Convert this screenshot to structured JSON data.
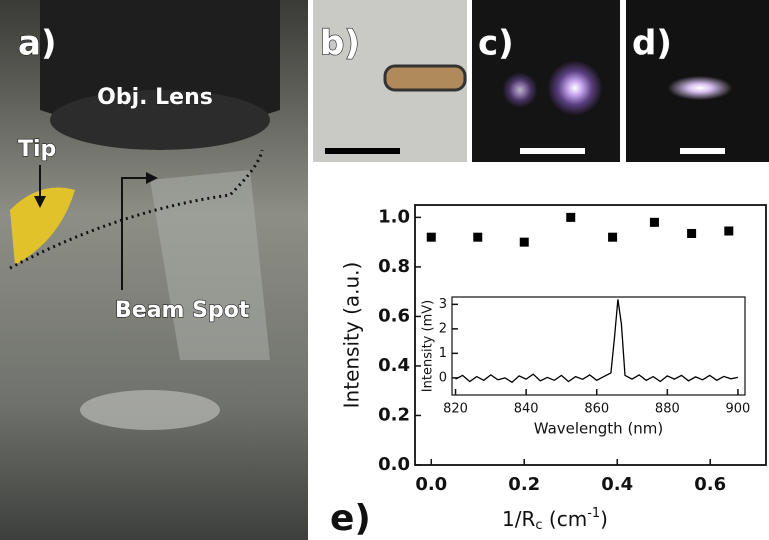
{
  "panel_labels": [
    "a)",
    "b)",
    "c)",
    "d)",
    "e)"
  ],
  "photo_annotations": [
    "Obj. Lens",
    "Tip",
    "Beam Spot"
  ],
  "chart_data": [
    {
      "type": "scatter",
      "ylabel": "Intensity (a.u.)",
      "xlabel": {
        "text": "1/R",
        "sub": "c",
        "unit_open": " (cm",
        "sup": "-1",
        "unit_close": ")"
      },
      "x": [
        0.0,
        0.1,
        0.2,
        0.3,
        0.39,
        0.48,
        0.56,
        0.64
      ],
      "values": [
        0.92,
        0.92,
        0.9,
        1.0,
        0.92,
        0.98,
        0.935,
        0.945
      ],
      "color": "#000000",
      "xlim": [
        -0.035,
        0.72
      ],
      "ylim": [
        0,
        1.05
      ],
      "xticks": [
        {
          "value": 0,
          "label": "0.0"
        },
        0.2,
        0.4,
        0.6
      ],
      "yticks": [
        {
          "value": 0,
          "label": "0.0"
        },
        0.2,
        0.4,
        0.6,
        0.8,
        {
          "value": 1,
          "label": "1.0"
        }
      ]
    },
    {
      "type": "line",
      "ylabel": "Intensity (mV)",
      "xlabel": "Wavelength (nm)",
      "x": [
        820,
        822,
        824,
        826,
        828,
        830,
        832,
        834,
        836,
        838,
        840,
        842,
        844,
        846,
        848,
        850,
        852,
        854,
        856,
        858,
        860,
        862,
        864,
        865,
        866,
        867,
        868,
        870,
        872,
        874,
        876,
        878,
        880,
        882,
        884,
        886,
        888,
        890,
        892,
        894,
        896,
        898,
        900
      ],
      "values": [
        -0.05,
        0.1,
        -0.15,
        0.05,
        -0.1,
        0.12,
        -0.08,
        0.0,
        -0.18,
        0.08,
        -0.05,
        0.15,
        -0.12,
        0.02,
        -0.1,
        0.1,
        -0.15,
        0.05,
        -0.06,
        0.12,
        -0.1,
        0.05,
        0.2,
        1.6,
        3.2,
        2.2,
        0.1,
        -0.05,
        0.12,
        -0.1,
        0.05,
        -0.15,
        0.08,
        -0.05,
        0.1,
        -0.12,
        0.04,
        -0.08,
        0.1,
        -0.1,
        0.06,
        -0.04,
        0.02
      ],
      "color": "#000000",
      "xlim": [
        819,
        902
      ],
      "ylim": [
        -0.7,
        3.3
      ],
      "xticks": [
        820,
        840,
        860,
        880,
        900
      ],
      "yticks": [
        0,
        1,
        2,
        3
      ]
    }
  ]
}
